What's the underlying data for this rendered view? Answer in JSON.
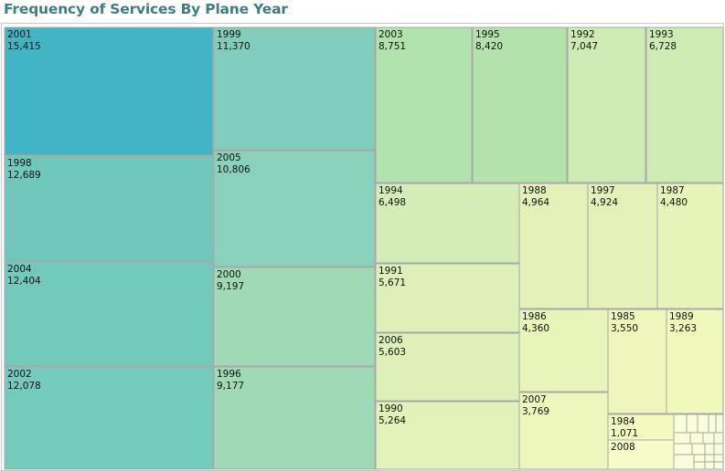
{
  "title": "Frequency of Services By Plane Year",
  "chart_data": {
    "type": "treemap",
    "title": "Frequency of Services By Plane Year",
    "value_display": "comma",
    "color_scale": [
      "#3db4c4",
      "#5fc2bc",
      "#b2e2ae",
      "#f5fcbc"
    ],
    "items": [
      {
        "label": "2001",
        "value": 15415
      },
      {
        "label": "1999",
        "value": 11370
      },
      {
        "label": "2003",
        "value": 8751
      },
      {
        "label": "1995",
        "value": 8420
      },
      {
        "label": "1992",
        "value": 7047
      },
      {
        "label": "1993",
        "value": 6728
      },
      {
        "label": "1998",
        "value": 12689
      },
      {
        "label": "2005",
        "value": 10806
      },
      {
        "label": "1994",
        "value": 6498
      },
      {
        "label": "1988",
        "value": 4964
      },
      {
        "label": "1997",
        "value": 4924
      },
      {
        "label": "1987",
        "value": 4480
      },
      {
        "label": "2004",
        "value": 12404
      },
      {
        "label": "2000",
        "value": 9197
      },
      {
        "label": "1991",
        "value": 5671
      },
      {
        "label": "1986",
        "value": 4360
      },
      {
        "label": "1985",
        "value": 3550
      },
      {
        "label": "1989",
        "value": 3263
      },
      {
        "label": "2006",
        "value": 5603
      },
      {
        "label": "2002",
        "value": 12078
      },
      {
        "label": "1996",
        "value": 9177
      },
      {
        "label": "2007",
        "value": 3769
      },
      {
        "label": "1990",
        "value": 5264
      },
      {
        "label": "1984",
        "value": 1071
      },
      {
        "label": "2008",
        "value": null
      }
    ]
  }
}
